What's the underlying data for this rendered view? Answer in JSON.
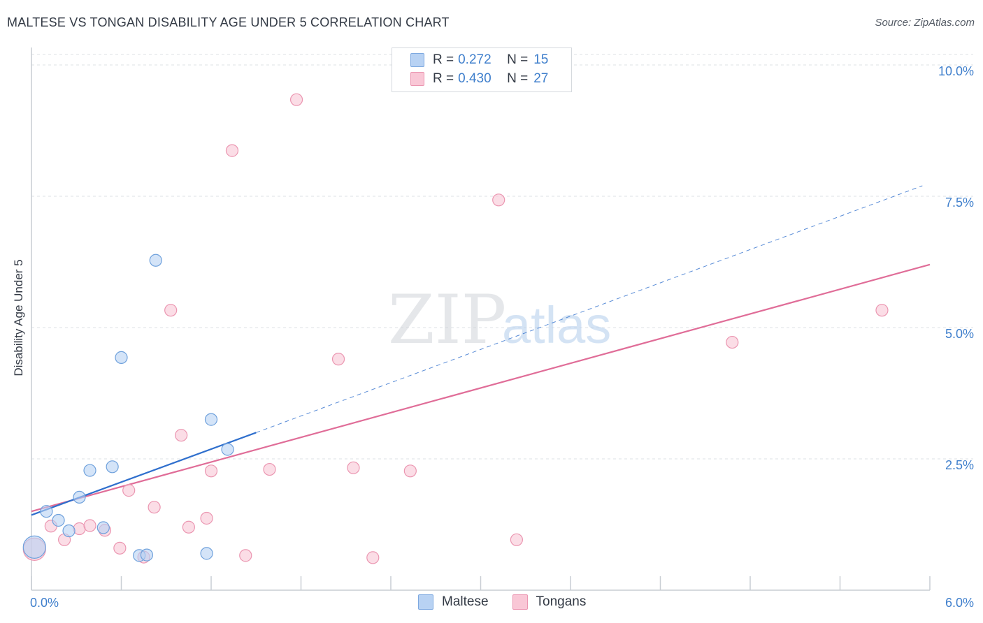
{
  "header": {
    "title": "MALTESE VS TONGAN DISABILITY AGE UNDER 5 CORRELATION CHART",
    "source": "Source: ZipAtlas.com"
  },
  "watermark": {
    "zip": "ZIP",
    "atlas": "atlas"
  },
  "legend_top": {
    "rows": [
      {
        "r_label": "R =",
        "r_value": "0.272",
        "n_label": "N =",
        "n_value": "15"
      },
      {
        "r_label": "R =",
        "r_value": "0.430",
        "n_label": "N =",
        "n_value": "27"
      }
    ]
  },
  "legend_bottom": {
    "items": [
      "Maltese",
      "Tongans"
    ]
  },
  "colors": {
    "maltese_fill": "#b8d2f3",
    "maltese_stroke": "#6fa1dc",
    "maltese_line": "#2f6fcd",
    "tongans_fill": "#f9c7d6",
    "tongans_stroke": "#eb96b1",
    "tongans_line": "#e06d98",
    "grid": "#dde1e6",
    "tick_label": "#3f7fcc"
  },
  "chart_data": {
    "type": "scatter",
    "title": "MALTESE VS TONGAN DISABILITY AGE UNDER 5 CORRELATION CHART",
    "xlabel": "",
    "ylabel": "Disability Age Under 5",
    "xlim": [
      0,
      6
    ],
    "ylim": [
      0,
      10.2
    ],
    "x_tick_labels": [
      "0.0%",
      "6.0%"
    ],
    "y_ticks": [
      2.5,
      5.0,
      7.5,
      10.0
    ],
    "y_tick_labels": [
      "2.5%",
      "5.0%",
      "7.5%",
      "10.0%"
    ],
    "grid": true,
    "series": [
      {
        "name": "Maltese",
        "R": 0.272,
        "N": 15,
        "points": [
          [
            0.02,
            0.82
          ],
          [
            0.1,
            1.5
          ],
          [
            0.18,
            1.33
          ],
          [
            0.25,
            1.13
          ],
          [
            0.32,
            1.77
          ],
          [
            0.39,
            2.28
          ],
          [
            0.48,
            1.19
          ],
          [
            0.54,
            2.35
          ],
          [
            0.6,
            4.43
          ],
          [
            0.72,
            0.66
          ],
          [
            0.77,
            0.67
          ],
          [
            0.83,
            6.28
          ],
          [
            1.17,
            0.7
          ],
          [
            1.2,
            3.25
          ],
          [
            1.31,
            2.68
          ]
        ],
        "trend": {
          "x0": 0,
          "y0": 1.43,
          "x1": 1.5,
          "y1": 3.0,
          "x_dash_end": 5.95,
          "y_dash_end": 7.7
        }
      },
      {
        "name": "Tongans",
        "R": 0.43,
        "N": 27,
        "points": [
          [
            0.02,
            0.78
          ],
          [
            0.13,
            1.22
          ],
          [
            0.22,
            0.96
          ],
          [
            0.32,
            1.17
          ],
          [
            0.39,
            1.23
          ],
          [
            0.49,
            1.14
          ],
          [
            0.59,
            0.8
          ],
          [
            0.65,
            1.9
          ],
          [
            0.75,
            0.63
          ],
          [
            0.82,
            1.58
          ],
          [
            0.93,
            5.33
          ],
          [
            1.0,
            2.95
          ],
          [
            1.05,
            1.2
          ],
          [
            1.2,
            2.27
          ],
          [
            1.17,
            1.37
          ],
          [
            1.34,
            8.37
          ],
          [
            1.43,
            0.66
          ],
          [
            1.59,
            2.3
          ],
          [
            1.77,
            9.34
          ],
          [
            2.05,
            4.4
          ],
          [
            2.15,
            2.33
          ],
          [
            2.28,
            0.62
          ],
          [
            2.53,
            2.27
          ],
          [
            3.12,
            7.43
          ],
          [
            3.24,
            0.96
          ],
          [
            4.68,
            4.72
          ],
          [
            5.68,
            5.33
          ]
        ],
        "trend": {
          "x0": 0,
          "y0": 1.5,
          "x1": 6.0,
          "y1": 6.2
        }
      }
    ]
  }
}
